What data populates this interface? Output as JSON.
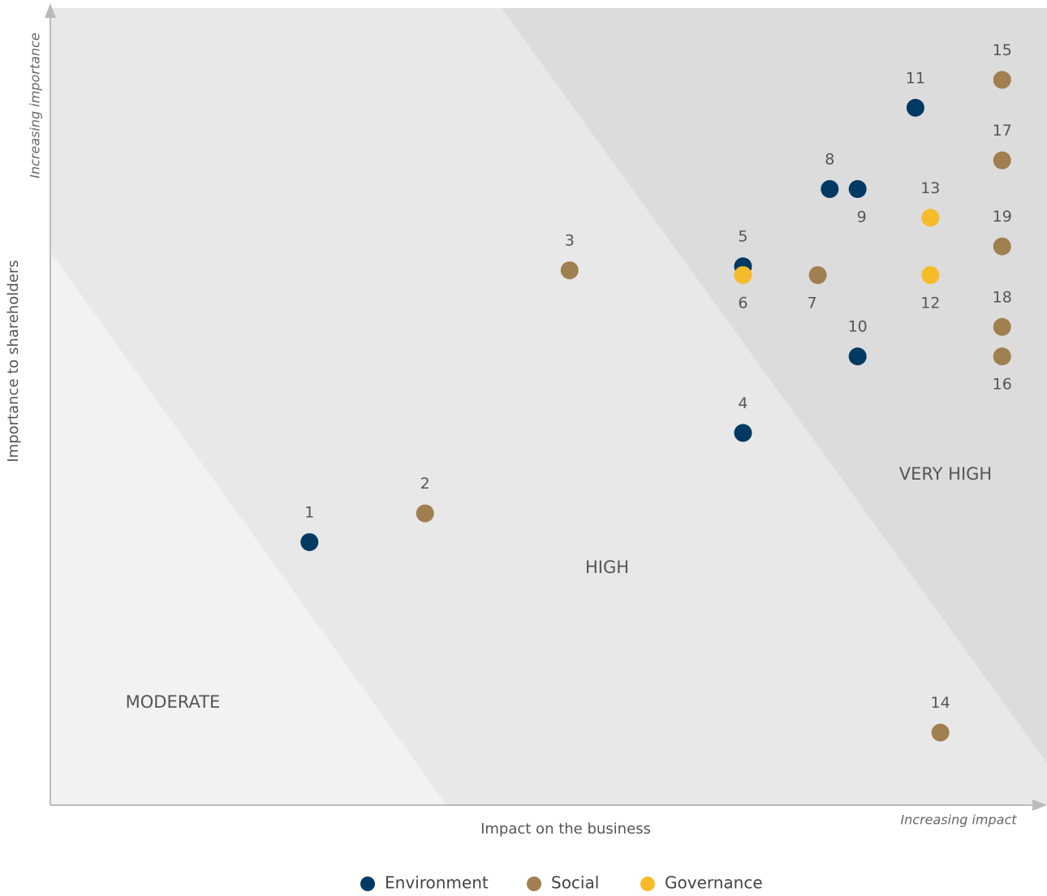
{
  "chart_data": {
    "type": "scatter",
    "x_label": "Impact on the business",
    "y_label": "Importance to shareholders",
    "x_note": "Increasing impact",
    "y_note": "Increasing importance",
    "zones": [
      "MODERATE",
      "HIGH",
      "VERY HIGH"
    ],
    "xlim": [
      0,
      100
    ],
    "ylim": [
      0,
      100
    ],
    "series": [
      {
        "name": "Environment",
        "color": "#003a63",
        "labels": [
          "1",
          "4",
          "5",
          "8",
          "9",
          "10",
          "11"
        ],
        "x": [
          26.0,
          69.5,
          69.5,
          78.2,
          81.0,
          81.0,
          86.8
        ],
        "values": [
          33.0,
          46.7,
          67.6,
          77.3,
          77.3,
          56.3,
          87.5
        ]
      },
      {
        "name": "Social",
        "color": "#a07f50",
        "labels": [
          "2",
          "3",
          "7",
          "14",
          "15",
          "16",
          "17",
          "18",
          "19"
        ],
        "x": [
          37.6,
          52.1,
          77.0,
          89.3,
          95.5,
          95.5,
          95.5,
          95.5,
          95.5
        ],
        "values": [
          36.6,
          67.1,
          66.5,
          9.1,
          91.0,
          56.3,
          80.9,
          60.0,
          70.1
        ]
      },
      {
        "name": "Governance",
        "color": "#f6bb2b",
        "labels": [
          "6",
          "12",
          "13"
        ],
        "x": [
          69.5,
          88.3,
          88.3
        ],
        "values": [
          66.5,
          66.5,
          73.7
        ]
      }
    ]
  }
}
